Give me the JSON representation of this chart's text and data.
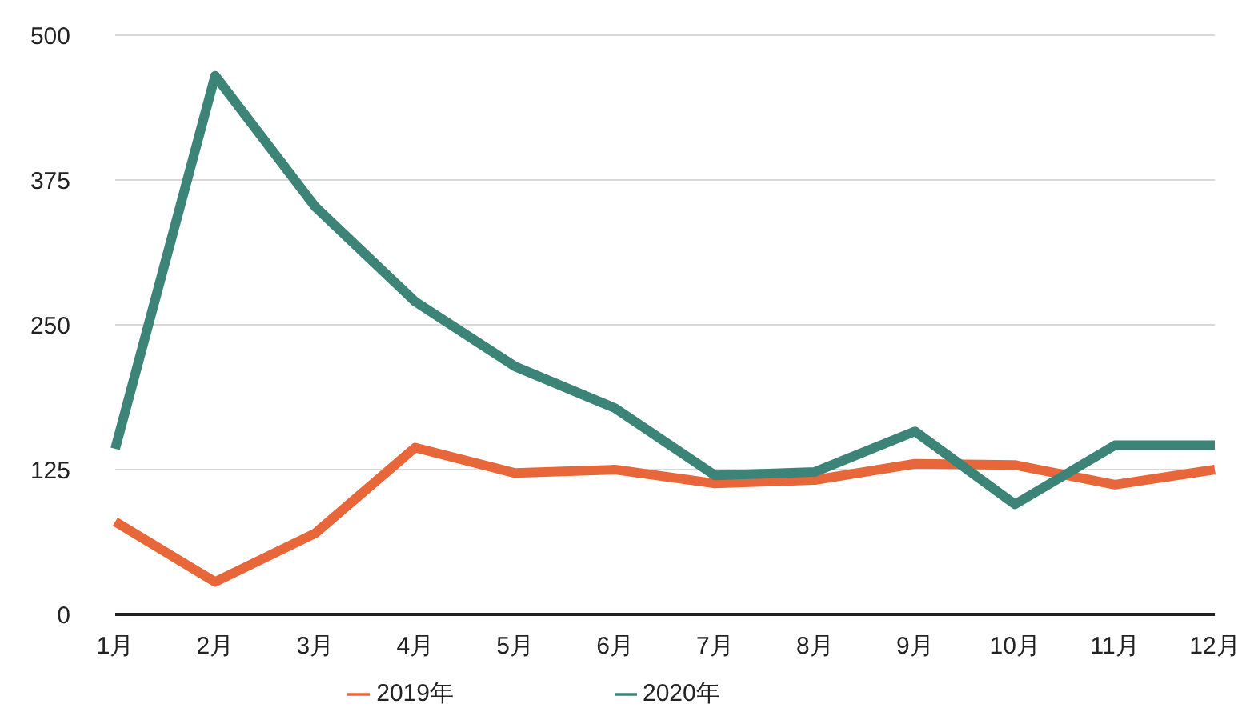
{
  "chart_data": {
    "type": "line",
    "categories": [
      "1月",
      "2月",
      "3月",
      "4月",
      "5月",
      "6月",
      "7月",
      "8月",
      "9月",
      "10月",
      "11月",
      "12月"
    ],
    "series": [
      {
        "name": "2019年",
        "color": "#e8673a",
        "values": [
          80,
          28,
          70,
          144,
          122,
          125,
          113,
          116,
          130,
          129,
          112,
          125
        ]
      },
      {
        "name": "2020年",
        "color": "#3d8478",
        "values": [
          143,
          465,
          352,
          270,
          214,
          178,
          120,
          123,
          158,
          95,
          146,
          146
        ]
      }
    ],
    "ylim": [
      0,
      500
    ],
    "yticks": [
      0,
      125,
      250,
      375,
      500
    ],
    "grid": "y",
    "legend": "bottom",
    "marker": "none",
    "line_style": "solid"
  }
}
